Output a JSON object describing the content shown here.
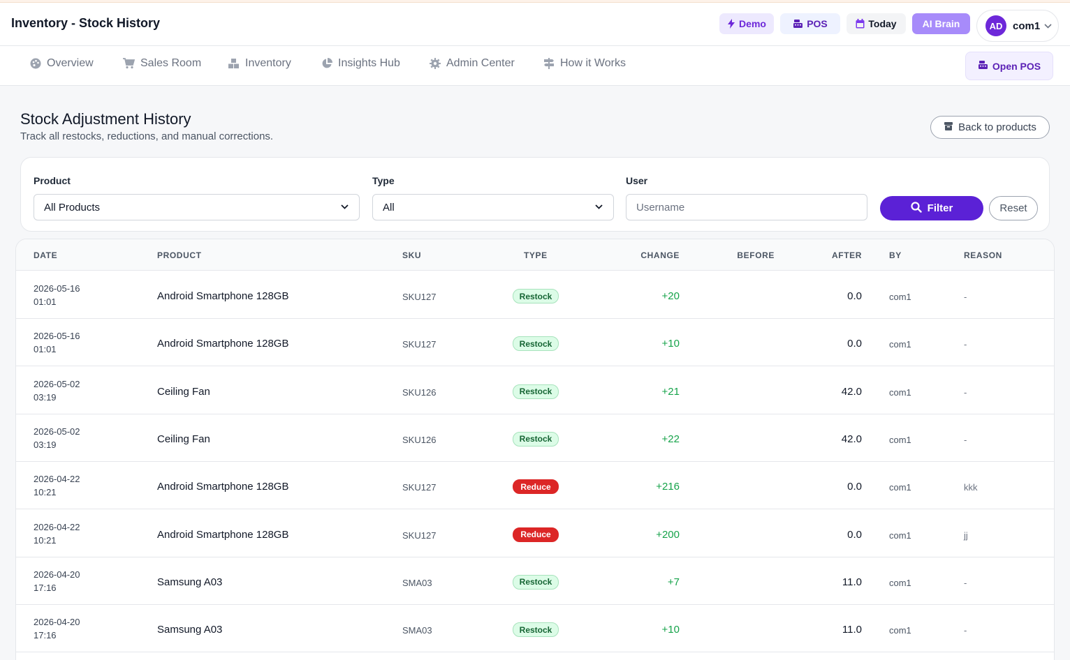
{
  "header": {
    "title": "Inventory - Stock History",
    "buttons": {
      "demo": "Demo",
      "pos": "POS",
      "today": "Today",
      "ai": "AI Brain"
    },
    "user": {
      "initials": "AD",
      "name": "com1"
    }
  },
  "nav": {
    "items": [
      "Overview",
      "Sales Room",
      "Inventory",
      "Insights Hub",
      "Admin Center",
      "How it Works"
    ],
    "open_pos": "Open POS"
  },
  "page": {
    "title": "Stock Adjustment History",
    "subtitle": "Track all restocks, reductions, and manual corrections.",
    "back_button": "Back to products"
  },
  "filters": {
    "product_label": "Product",
    "product_value": "All Products",
    "type_label": "Type",
    "type_value": "All",
    "user_label": "User",
    "user_placeholder": "Username",
    "filter_button": "Filter",
    "reset_button": "Reset"
  },
  "table": {
    "columns": [
      "DATE",
      "PRODUCT",
      "SKU",
      "TYPE",
      "CHANGE",
      "BEFORE",
      "AFTER",
      "BY",
      "REASON"
    ],
    "rows": [
      {
        "date": "2026-05-16",
        "time": "01:01",
        "product": "Android Smartphone 128GB",
        "sku": "SKU127",
        "type": "Restock",
        "change": "+20",
        "before": "",
        "after": "0.0",
        "by": "com1",
        "reason": "-"
      },
      {
        "date": "2026-05-16",
        "time": "01:01",
        "product": "Android Smartphone 128GB",
        "sku": "SKU127",
        "type": "Restock",
        "change": "+10",
        "before": "",
        "after": "0.0",
        "by": "com1",
        "reason": "-"
      },
      {
        "date": "2026-05-02",
        "time": "03:19",
        "product": "Ceiling Fan",
        "sku": "SKU126",
        "type": "Restock",
        "change": "+21",
        "before": "",
        "after": "42.0",
        "by": "com1",
        "reason": "-"
      },
      {
        "date": "2026-05-02",
        "time": "03:19",
        "product": "Ceiling Fan",
        "sku": "SKU126",
        "type": "Restock",
        "change": "+22",
        "before": "",
        "after": "42.0",
        "by": "com1",
        "reason": "-"
      },
      {
        "date": "2026-04-22",
        "time": "10:21",
        "product": "Android Smartphone 128GB",
        "sku": "SKU127",
        "type": "Reduce",
        "change": "+216",
        "before": "",
        "after": "0.0",
        "by": "com1",
        "reason": "kkk"
      },
      {
        "date": "2026-04-22",
        "time": "10:21",
        "product": "Android Smartphone 128GB",
        "sku": "SKU127",
        "type": "Reduce",
        "change": "+200",
        "before": "",
        "after": "0.0",
        "by": "com1",
        "reason": "jj"
      },
      {
        "date": "2026-04-20",
        "time": "17:16",
        "product": "Samsung A03",
        "sku": "SMA03",
        "type": "Restock",
        "change": "+7",
        "before": "",
        "after": "11.0",
        "by": "com1",
        "reason": "-"
      },
      {
        "date": "2026-04-20",
        "time": "17:16",
        "product": "Samsung A03",
        "sku": "SMA03",
        "type": "Restock",
        "change": "+10",
        "before": "",
        "after": "11.0",
        "by": "com1",
        "reason": "-"
      }
    ]
  },
  "colors": {
    "accent": "#5b21d6",
    "restock_bg": "#dcfce7",
    "reduce_bg": "#dc2626",
    "change_green": "#16a34a"
  }
}
